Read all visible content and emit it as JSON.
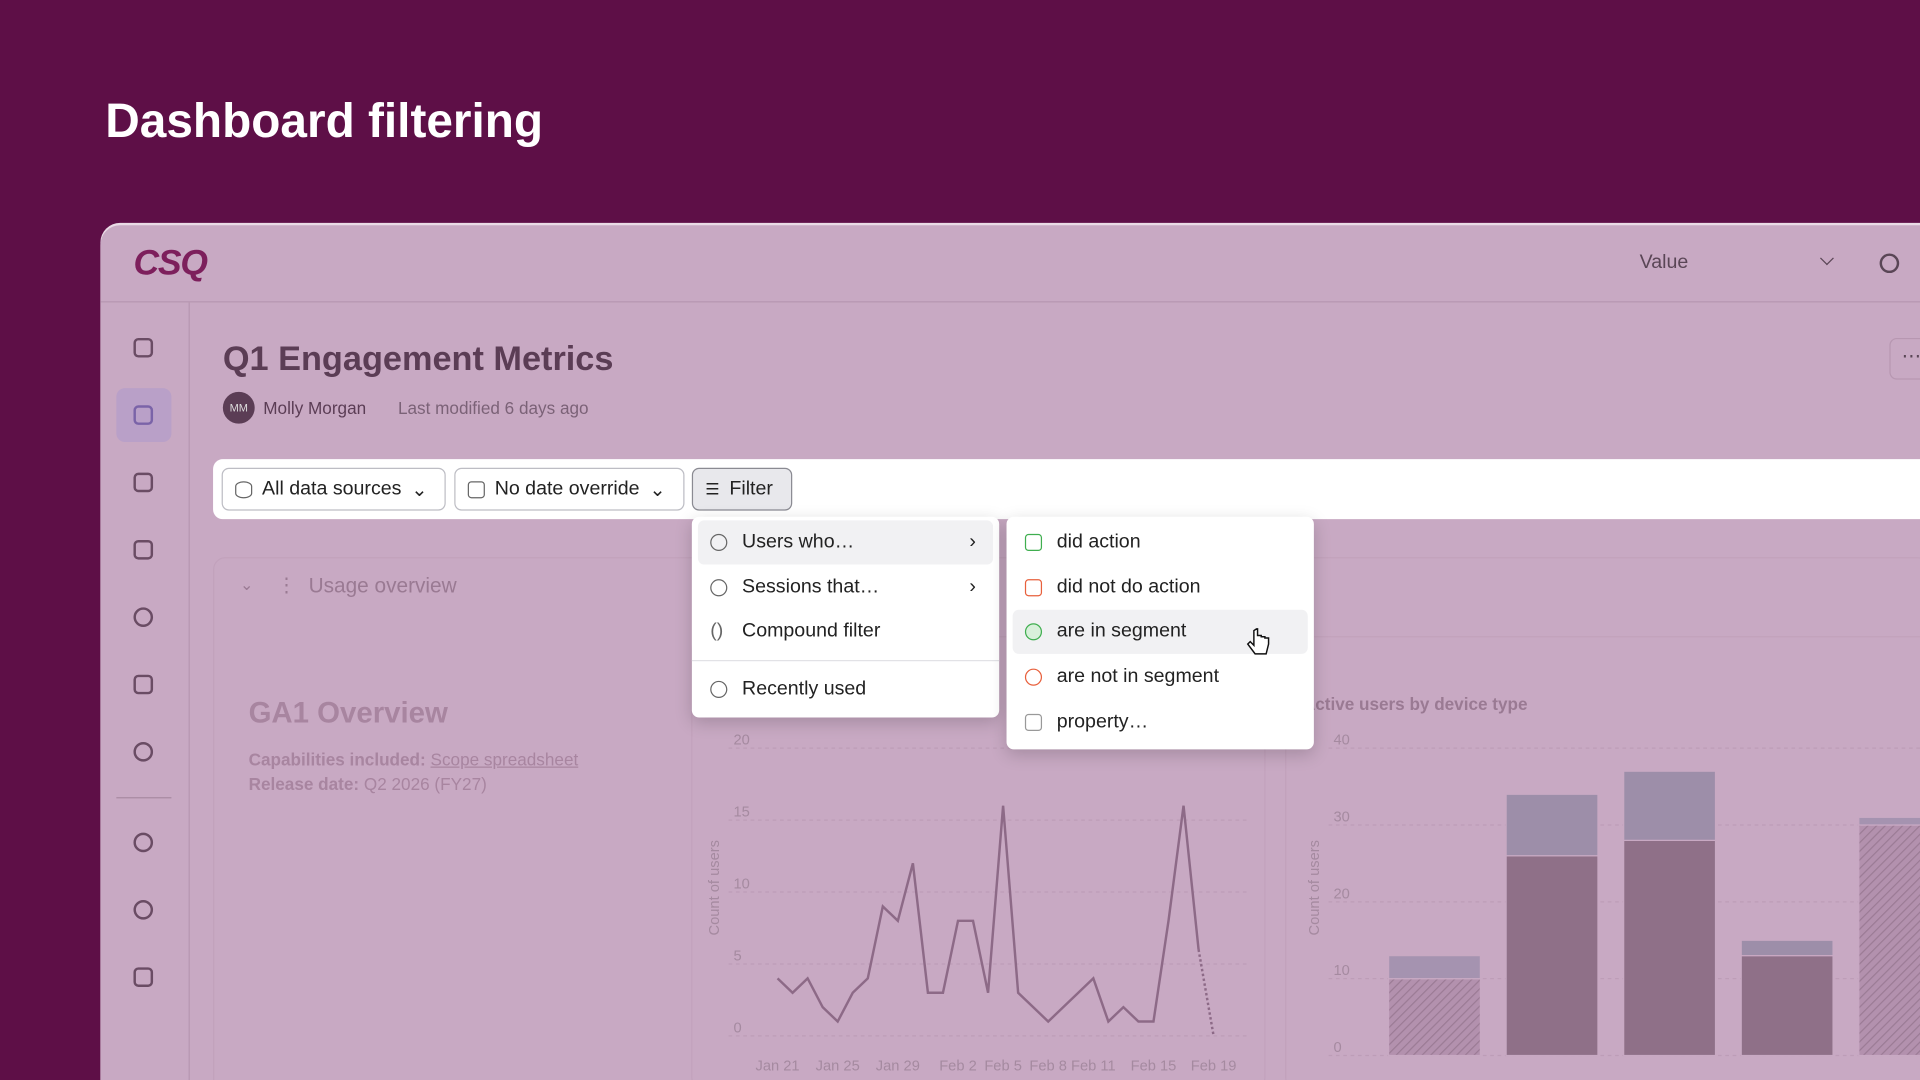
{
  "page_title": "Dashboard filtering",
  "app": {
    "logo": "CSQ",
    "value_select": "Value"
  },
  "dashboard": {
    "title": "Q1 Engagement Metrics",
    "avatar": "MM",
    "owner": "Molly Morgan",
    "modified": "Last modified 6 days ago"
  },
  "toolbar": {
    "sources": "All data sources",
    "date": "No date override",
    "filter": "Filter"
  },
  "filter_menu": [
    "Users who…",
    "Sessions that…",
    "Compound filter",
    "Recently used"
  ],
  "submenu": [
    "did action",
    "did not do action",
    "are in segment",
    "are not in segment",
    "property…"
  ],
  "section": "Usage overview",
  "overview": {
    "title": "GA1 Overview",
    "cap_label": "Capabilities included:",
    "cap_link": "Scope spreadsheet",
    "release_label": "Release date:",
    "release": "Q2 2026 (FY27)"
  },
  "charts": [
    {
      "type": "line",
      "y_label": "Count of users",
      "color": "#8d6a87",
      "categories": [
        "Jan 21",
        null,
        null,
        null,
        "Jan 25",
        null,
        null,
        null,
        "Jan 29",
        null,
        null,
        null,
        "Feb 2",
        null,
        null,
        "Feb 5",
        null,
        null,
        "Feb 8",
        null,
        null,
        "Feb 11",
        null,
        null,
        null,
        "Feb 15",
        null,
        null,
        null,
        "Feb 19"
      ],
      "values": [
        4,
        3,
        4,
        2,
        1,
        3,
        4,
        9,
        8,
        12,
        3,
        3,
        8,
        8,
        3,
        16,
        3,
        2,
        1,
        2,
        3,
        4,
        1,
        2,
        1,
        1,
        8,
        16,
        6,
        0
      ],
      "ylim": [
        0,
        20
      ],
      "yticks": [
        0,
        5,
        10,
        15,
        20
      ],
      "grid": true
    },
    {
      "type": "bar",
      "title": "Active users by device type",
      "y_label": "Count of users",
      "stacked": true,
      "series": [
        {
          "color": "#8f7088",
          "values": [
            10,
            26,
            28,
            13,
            30
          ]
        },
        {
          "color": "#9d8ea9",
          "values": [
            3,
            8,
            9,
            2,
            1
          ]
        }
      ],
      "hatched": [
        true,
        false,
        false,
        false,
        true
      ],
      "ylim": [
        0,
        40
      ],
      "yticks": [
        0,
        10,
        20,
        30,
        40
      ],
      "grid": true
    }
  ]
}
